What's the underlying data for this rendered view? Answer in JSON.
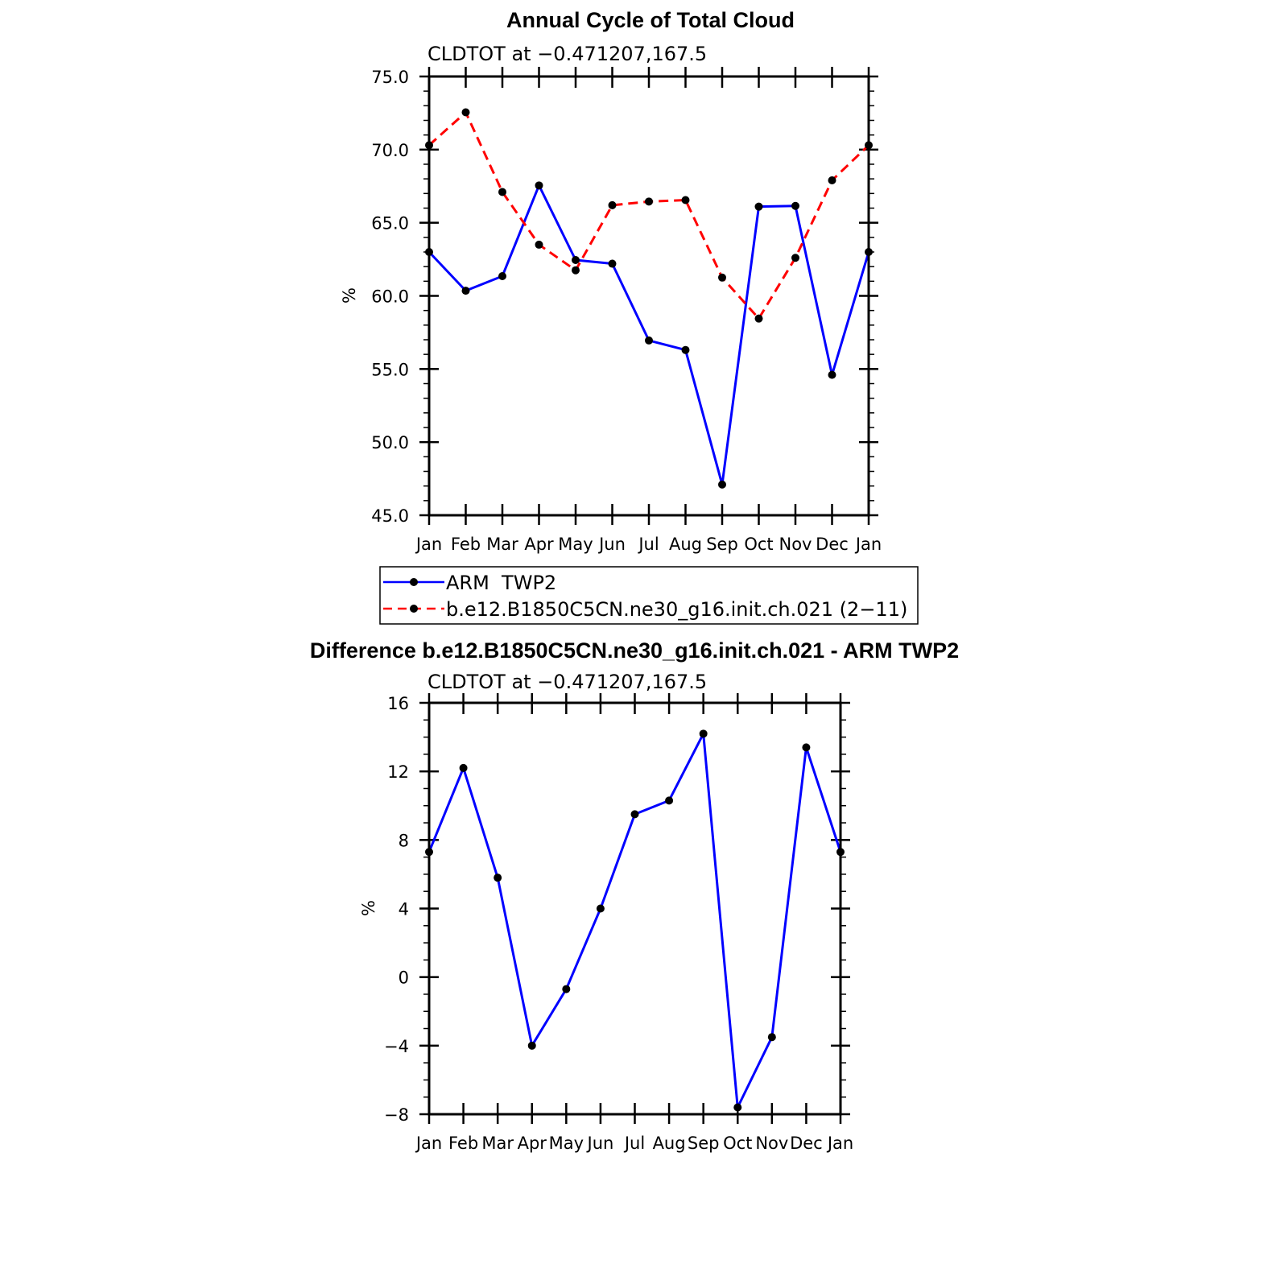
{
  "chart_data": [
    {
      "type": "line",
      "title": "Annual Cycle of Total Cloud",
      "subtitle": "CLDTOT at −0.471207,167.5",
      "ylabel": "%",
      "xlabel": "",
      "categories": [
        "Jan",
        "Feb",
        "Mar",
        "Apr",
        "May",
        "Jun",
        "Jul",
        "Aug",
        "Sep",
        "Oct",
        "Nov",
        "Dec",
        "Jan"
      ],
      "ylim": [
        45,
        75
      ],
      "yticks": [
        45,
        50,
        55,
        60,
        65,
        70,
        75
      ],
      "ytick_labels": [
        "45.0",
        "50.0",
        "55.0",
        "60.0",
        "65.0",
        "70.0",
        "75.0"
      ],
      "grid": false,
      "legend_position": "bottom",
      "series": [
        {
          "name": "ARM  TWP2",
          "color": "#0000ff",
          "dash": "solid",
          "values": [
            63.0,
            60.35,
            61.35,
            67.55,
            62.45,
            62.2,
            56.95,
            56.3,
            47.1,
            66.1,
            66.15,
            54.6,
            63.0
          ]
        },
        {
          "name": "b.e12.B1850C5CN.ne30_g16.init.ch.021 (2−11)",
          "color": "#ff0000",
          "dash": "dashed",
          "values": [
            70.3,
            72.55,
            67.1,
            63.5,
            61.75,
            66.2,
            66.45,
            66.55,
            61.25,
            58.45,
            62.6,
            67.9,
            70.3
          ]
        }
      ]
    },
    {
      "type": "line",
      "title": "Difference b.e12.B1850C5CN.ne30_g16.init.ch.021 - ARM TWP2",
      "subtitle": "CLDTOT at −0.471207,167.5",
      "ylabel": "%",
      "xlabel": "",
      "categories": [
        "Jan",
        "Feb",
        "Mar",
        "Apr",
        "May",
        "Jun",
        "Jul",
        "Aug",
        "Sep",
        "Oct",
        "Nov",
        "Dec",
        "Jan"
      ],
      "ylim": [
        -8,
        16
      ],
      "yticks": [
        -8,
        -4,
        0,
        4,
        8,
        12,
        16
      ],
      "ytick_labels": [
        "−8",
        "−4",
        "0",
        "4",
        "8",
        "12",
        "16"
      ],
      "grid": false,
      "series": [
        {
          "color": "#0000ff",
          "dash": "solid",
          "values": [
            7.3,
            12.2,
            5.8,
            -4.0,
            -0.7,
            4.0,
            9.5,
            10.3,
            14.2,
            -7.6,
            -3.5,
            13.4,
            7.3
          ]
        }
      ]
    }
  ]
}
